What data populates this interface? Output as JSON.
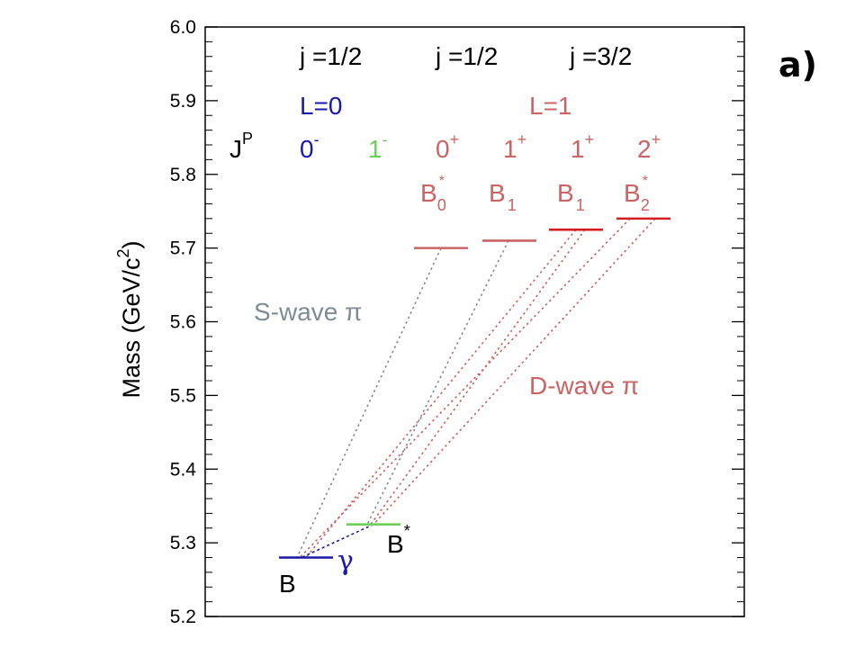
{
  "panel_label": "a)",
  "colors": {
    "blue": "#1a1aa6",
    "green": "#6ccf5a",
    "rose": "#c86464",
    "red": "#d21e1e",
    "gray": "#7f8c94",
    "black": "#000000"
  },
  "chart_data": {
    "type": "level-diagram",
    "ylabel": "Mass (GeV/c²)",
    "ylabel_parts": {
      "main": "Mass (GeV/c",
      "sup": "2",
      "close": ")"
    },
    "ylim": [
      5.2,
      6.0
    ],
    "yticks": [
      "5.2",
      "5.3",
      "5.4",
      "5.5",
      "5.6",
      "5.7",
      "5.8",
      "5.9",
      "6.0"
    ],
    "ytick_values": [
      5.2,
      5.3,
      5.4,
      5.5,
      5.6,
      5.7,
      5.8,
      5.9,
      6.0
    ],
    "j_headers": [
      "j =1/2",
      "j =1/2",
      "j =3/2"
    ],
    "L_labels": [
      "L=0",
      "L=1"
    ],
    "jp_label": {
      "main": "J",
      "sup": "P"
    },
    "jp_values": [
      {
        "main": "0",
        "sup": "-",
        "color": "blue"
      },
      {
        "main": "1",
        "sup": "-",
        "color": "green"
      },
      {
        "main": "0",
        "sup": "+",
        "color": "rose"
      },
      {
        "main": "1",
        "sup": "+",
        "color": "rose"
      },
      {
        "main": "1",
        "sup": "+",
        "color": "rose"
      },
      {
        "main": "2",
        "sup": "+",
        "color": "rose"
      }
    ],
    "excited_labels": [
      {
        "main": "B",
        "sub": "0",
        "sup": "*"
      },
      {
        "main": "B",
        "sub": "1",
        "sup": ""
      },
      {
        "main": "B",
        "sub": "1",
        "sup": ""
      },
      {
        "main": "B",
        "sub": "2",
        "sup": "*"
      }
    ],
    "levels": [
      {
        "name": "B",
        "mass": 5.28,
        "color": "blue"
      },
      {
        "name": "B*",
        "mass": 5.325,
        "color": "green"
      },
      {
        "name": "B0*",
        "mass": 5.7,
        "color": "rose"
      },
      {
        "name": "B1",
        "mass": 5.71,
        "color": "rose"
      },
      {
        "name": "B1",
        "mass": 5.725,
        "color": "red"
      },
      {
        "name": "B2*",
        "mass": 5.74,
        "color": "red"
      }
    ],
    "ground_labels": {
      "B": "B",
      "Bstar": {
        "main": "B",
        "sup": "*"
      }
    },
    "gamma_label": "γ",
    "annotations": [
      "S-wave π",
      "D-wave π"
    ],
    "transitions": [
      {
        "from": "B0*",
        "to": "B",
        "color": "gray"
      },
      {
        "from": "B1",
        "to": "B*",
        "color": "gray"
      },
      {
        "from": "B1",
        "to": "B",
        "color": "rose"
      },
      {
        "from": "B1",
        "to": "B*",
        "color": "rose"
      },
      {
        "from": "B2*",
        "to": "B",
        "color": "rose"
      },
      {
        "from": "B2*",
        "to": "B*",
        "color": "rose"
      },
      {
        "from": "B*",
        "to": "B",
        "color": "blue"
      }
    ]
  }
}
